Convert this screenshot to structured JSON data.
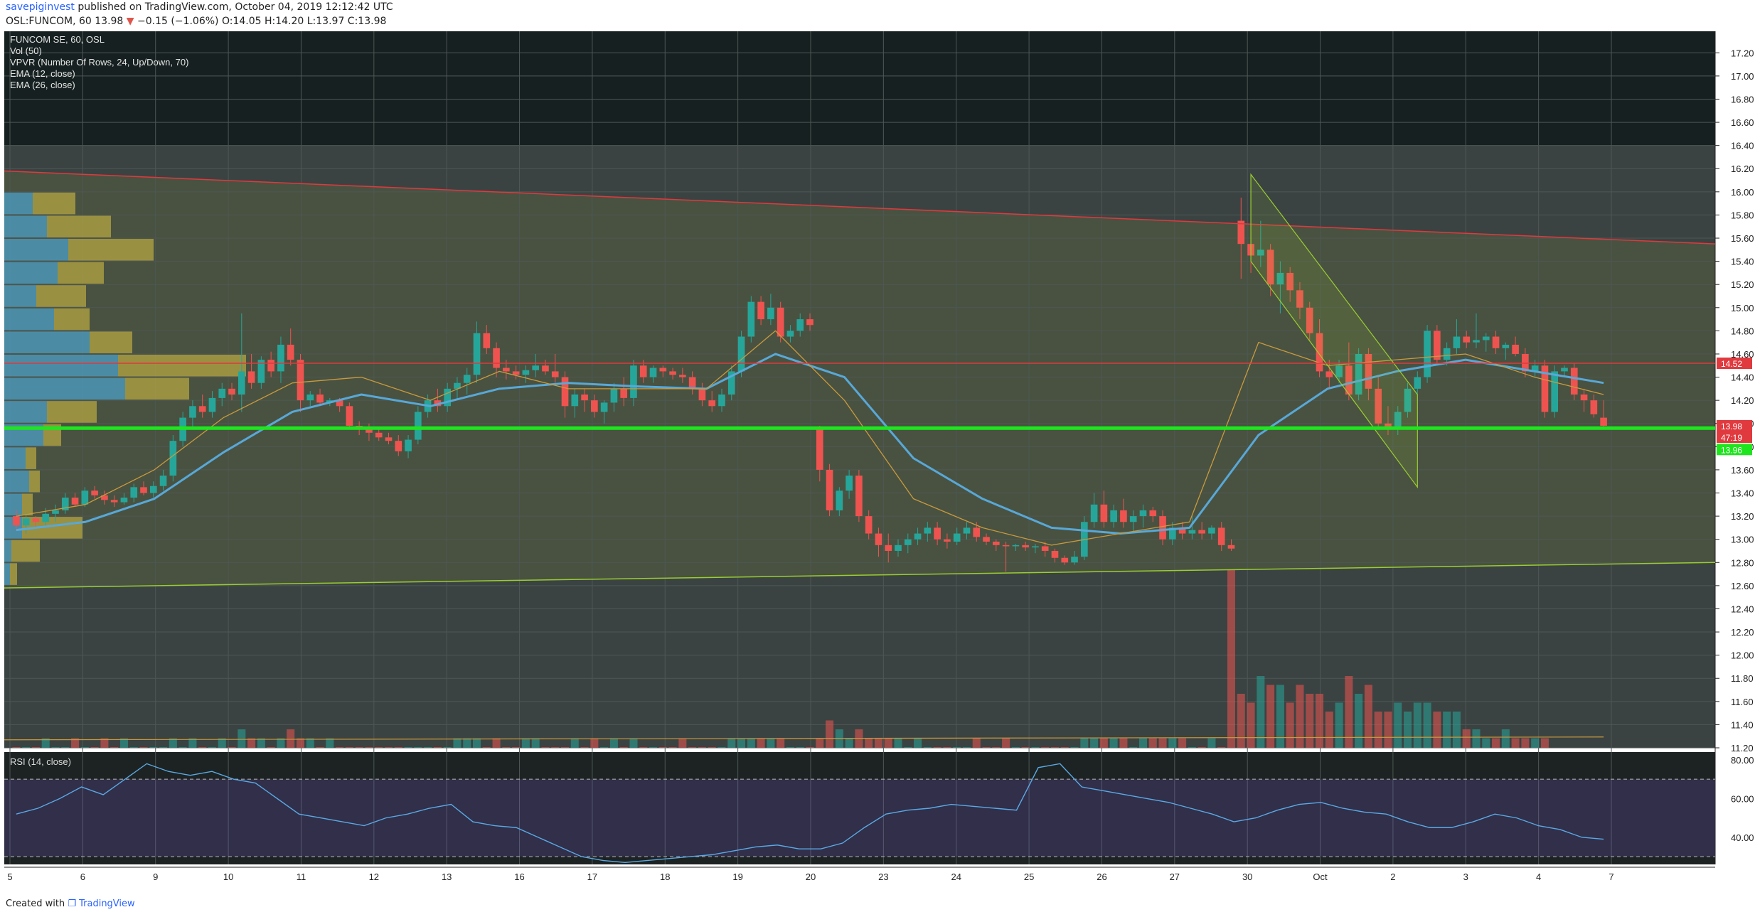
{
  "header": {
    "publisher": "savepiginvest",
    "published_text": "published on TradingView.com, October 04, 2019 12:12:42 UTC",
    "symbol": "OSL:FUNCOM, 60",
    "last": "13.98",
    "change": "−0.15 (−1.06%)",
    "ohlc": "O:14.05 H:14.20 L:13.97 C:13.98"
  },
  "legend": [
    "FUNCOM SE, 60, OSL",
    "Vol (50)",
    "VPVR (Number Of Rows, 24, Up/Down, 70)",
    "EMA (12, close)",
    "EMA (26, close)"
  ],
  "rsi_label": "RSI (14, close)",
  "footer": {
    "created_with": "Created with",
    "brand": "TradingView"
  },
  "price_badges": [
    {
      "text": "14.52",
      "color": "#e0393e"
    },
    {
      "text": "13.98",
      "color": "#e0393e"
    },
    {
      "text": "47:19",
      "color": "#e0393e"
    },
    {
      "text": "13.96",
      "color": "#1ee61e"
    }
  ],
  "colors": {
    "up": "#26a69a",
    "down": "#ef5350",
    "ema12": "#c99a3d",
    "ema26": "#58a8d8",
    "support": "#1ee61e",
    "resistance": "#e0393e",
    "channel": "#9acd32",
    "vpvr_up": "#4e9fc6",
    "vpvr_down": "#b5a642",
    "rsi_line": "#5aa9e6"
  },
  "chart_data": {
    "type": "candlestick",
    "title": "FUNCOM SE, 60, OSL",
    "timeframe": "60",
    "x_tick_labels": [
      "5",
      "6",
      "9",
      "10",
      "11",
      "12",
      "13",
      "16",
      "17",
      "18",
      "19",
      "20",
      "23",
      "24",
      "25",
      "26",
      "27",
      "30",
      "Oct",
      "2",
      "3",
      "4",
      "7"
    ],
    "price_ticks": [
      11.2,
      11.4,
      11.6,
      11.8,
      12.0,
      12.2,
      12.4,
      12.6,
      12.8,
      13.0,
      13.2,
      13.4,
      13.6,
      13.8,
      14.0,
      14.2,
      14.4,
      14.6,
      14.8,
      15.0,
      15.2,
      15.4,
      15.6,
      15.8,
      16.0,
      16.2,
      16.4,
      16.6,
      16.8,
      17.0,
      17.2
    ],
    "ylim": [
      11.2,
      17.3
    ],
    "candles_ohlc": [
      [
        13.2,
        13.25,
        13.08,
        13.12
      ],
      [
        13.12,
        13.22,
        13.05,
        13.18
      ],
      [
        13.18,
        13.2,
        13.1,
        13.15
      ],
      [
        13.15,
        13.27,
        13.12,
        13.22
      ],
      [
        13.22,
        13.3,
        13.15,
        13.25
      ],
      [
        13.25,
        13.4,
        13.22,
        13.36
      ],
      [
        13.36,
        13.4,
        13.28,
        13.3
      ],
      [
        13.3,
        13.45,
        13.28,
        13.42
      ],
      [
        13.42,
        13.46,
        13.35,
        13.38
      ],
      [
        13.38,
        13.42,
        13.3,
        13.34
      ],
      [
        13.34,
        13.38,
        13.28,
        13.32
      ],
      [
        13.32,
        13.4,
        13.3,
        13.36
      ],
      [
        13.36,
        13.48,
        13.32,
        13.45
      ],
      [
        13.45,
        13.5,
        13.38,
        13.4
      ],
      [
        13.4,
        13.5,
        13.36,
        13.46
      ],
      [
        13.46,
        13.6,
        13.42,
        13.55
      ],
      [
        13.55,
        13.9,
        13.5,
        13.85
      ],
      [
        13.85,
        14.1,
        13.8,
        14.05
      ],
      [
        14.05,
        14.2,
        13.95,
        14.15
      ],
      [
        14.15,
        14.25,
        14.05,
        14.1
      ],
      [
        14.1,
        14.28,
        14.05,
        14.22
      ],
      [
        14.22,
        14.35,
        14.15,
        14.3
      ],
      [
        14.3,
        14.35,
        14.2,
        14.25
      ],
      [
        14.25,
        14.95,
        14.1,
        14.45
      ],
      [
        14.45,
        14.6,
        14.3,
        14.35
      ],
      [
        14.35,
        14.58,
        14.3,
        14.55
      ],
      [
        14.55,
        14.62,
        14.4,
        14.45
      ],
      [
        14.45,
        14.75,
        14.35,
        14.68
      ],
      [
        14.68,
        14.82,
        14.5,
        14.55
      ],
      [
        14.55,
        14.6,
        14.1,
        14.2
      ],
      [
        14.2,
        14.28,
        14.15,
        14.25
      ],
      [
        14.25,
        14.3,
        14.15,
        14.18
      ],
      [
        14.18,
        14.22,
        14.15,
        14.2
      ],
      [
        14.2,
        14.22,
        14.1,
        14.15
      ],
      [
        14.15,
        14.18,
        13.95,
        13.98
      ],
      [
        13.98,
        14.02,
        13.9,
        13.95
      ],
      [
        13.95,
        14.0,
        13.85,
        13.92
      ],
      [
        13.92,
        13.95,
        13.85,
        13.88
      ],
      [
        13.88,
        13.92,
        13.82,
        13.85
      ],
      [
        13.85,
        13.9,
        13.72,
        13.76
      ],
      [
        13.76,
        13.9,
        13.7,
        13.86
      ],
      [
        13.86,
        14.15,
        13.82,
        14.1
      ],
      [
        14.1,
        14.25,
        14.05,
        14.2
      ],
      [
        14.2,
        14.3,
        14.1,
        14.15
      ],
      [
        14.15,
        14.35,
        14.1,
        14.3
      ],
      [
        14.3,
        14.4,
        14.2,
        14.35
      ],
      [
        14.35,
        14.48,
        14.25,
        14.42
      ],
      [
        14.42,
        14.88,
        14.35,
        14.78
      ],
      [
        14.78,
        14.85,
        14.6,
        14.65
      ],
      [
        14.65,
        14.7,
        14.4,
        14.48
      ],
      [
        14.48,
        14.55,
        14.38,
        14.45
      ],
      [
        14.45,
        14.5,
        14.38,
        14.42
      ],
      [
        14.42,
        14.5,
        14.35,
        14.46
      ],
      [
        14.46,
        14.6,
        14.4,
        14.5
      ],
      [
        14.5,
        14.55,
        14.42,
        14.45
      ],
      [
        14.45,
        14.6,
        14.35,
        14.4
      ],
      [
        14.4,
        14.45,
        14.05,
        14.15
      ],
      [
        14.15,
        14.3,
        14.05,
        14.25
      ],
      [
        14.25,
        14.3,
        14.1,
        14.2
      ],
      [
        14.2,
        14.25,
        14.05,
        14.1
      ],
      [
        14.1,
        14.2,
        14.0,
        14.18
      ],
      [
        14.18,
        14.35,
        14.1,
        14.3
      ],
      [
        14.3,
        14.4,
        14.15,
        14.22
      ],
      [
        14.22,
        14.55,
        14.15,
        14.5
      ],
      [
        14.5,
        14.55,
        14.35,
        14.4
      ],
      [
        14.4,
        14.5,
        14.35,
        14.48
      ],
      [
        14.48,
        14.5,
        14.4,
        14.45
      ],
      [
        14.45,
        14.48,
        14.38,
        14.42
      ],
      [
        14.42,
        14.48,
        14.35,
        14.4
      ],
      [
        14.4,
        14.45,
        14.25,
        14.3
      ],
      [
        14.3,
        14.35,
        14.15,
        14.2
      ],
      [
        14.2,
        14.28,
        14.1,
        14.15
      ],
      [
        14.15,
        14.3,
        14.1,
        14.25
      ],
      [
        14.25,
        14.5,
        14.2,
        14.45
      ],
      [
        14.45,
        14.8,
        14.4,
        14.75
      ],
      [
        14.75,
        15.1,
        14.7,
        15.05
      ],
      [
        15.05,
        15.1,
        14.85,
        14.9
      ],
      [
        14.9,
        15.12,
        14.85,
        15.0
      ],
      [
        15.0,
        15.05,
        14.7,
        14.75
      ],
      [
        14.75,
        14.85,
        14.7,
        14.8
      ],
      [
        14.8,
        14.95,
        14.75,
        14.9
      ],
      [
        14.9,
        14.95,
        14.8,
        14.85
      ],
      [
        13.95,
        13.98,
        13.5,
        13.6
      ],
      [
        13.6,
        13.65,
        13.2,
        13.25
      ],
      [
        13.25,
        13.45,
        13.2,
        13.42
      ],
      [
        13.42,
        13.6,
        13.35,
        13.55
      ],
      [
        13.55,
        13.6,
        13.15,
        13.2
      ],
      [
        13.2,
        13.25,
        13.0,
        13.05
      ],
      [
        13.05,
        13.1,
        12.85,
        12.95
      ],
      [
        12.95,
        13.05,
        12.8,
        12.9
      ],
      [
        12.9,
        13.0,
        12.85,
        12.95
      ],
      [
        12.95,
        13.05,
        12.88,
        13.0
      ],
      [
        13.0,
        13.1,
        12.95,
        13.05
      ],
      [
        13.05,
        13.15,
        12.98,
        13.1
      ],
      [
        13.1,
        13.15,
        12.95,
        13.0
      ],
      [
        13.0,
        13.05,
        12.92,
        12.98
      ],
      [
        12.98,
        13.1,
        12.95,
        13.05
      ],
      [
        13.05,
        13.15,
        13.0,
        13.1
      ],
      [
        13.1,
        13.15,
        12.98,
        13.02
      ],
      [
        13.02,
        13.05,
        12.95,
        12.98
      ],
      [
        12.98,
        13.0,
        12.9,
        12.95
      ],
      [
        12.95,
        12.98,
        12.72,
        12.94
      ],
      [
        12.94,
        12.96,
        12.9,
        12.95
      ],
      [
        12.95,
        12.98,
        12.9,
        12.93
      ],
      [
        12.93,
        12.96,
        12.88,
        12.94
      ],
      [
        12.94,
        12.98,
        12.85,
        12.9
      ],
      [
        12.9,
        12.92,
        12.8,
        12.84
      ],
      [
        12.84,
        12.86,
        12.78,
        12.8
      ],
      [
        12.8,
        12.9,
        12.78,
        12.85
      ],
      [
        12.85,
        13.2,
        12.82,
        13.15
      ],
      [
        13.15,
        13.4,
        13.1,
        13.3
      ],
      [
        13.3,
        13.42,
        13.1,
        13.15
      ],
      [
        13.15,
        13.3,
        13.1,
        13.25
      ],
      [
        13.25,
        13.35,
        13.1,
        13.15
      ],
      [
        13.15,
        13.25,
        13.05,
        13.2
      ],
      [
        13.2,
        13.3,
        13.1,
        13.25
      ],
      [
        13.25,
        13.28,
        13.15,
        13.2
      ],
      [
        13.2,
        13.25,
        12.95,
        13.0
      ],
      [
        13.0,
        13.15,
        12.95,
        13.1
      ],
      [
        13.1,
        13.15,
        13.0,
        13.05
      ],
      [
        13.05,
        13.2,
        13.0,
        13.08
      ],
      [
        13.08,
        13.15,
        13.0,
        13.05
      ],
      [
        13.05,
        13.12,
        13.0,
        13.1
      ],
      [
        13.1,
        13.15,
        12.9,
        12.95
      ],
      [
        12.95,
        13.0,
        12.9,
        12.92
      ],
      [
        15.75,
        15.95,
        15.25,
        15.55
      ],
      [
        15.55,
        15.65,
        15.3,
        15.45
      ],
      [
        15.45,
        15.75,
        15.35,
        15.5
      ],
      [
        15.5,
        15.55,
        15.1,
        15.2
      ],
      [
        15.2,
        15.4,
        14.95,
        15.3
      ],
      [
        15.3,
        15.35,
        15.05,
        15.15
      ],
      [
        15.15,
        15.22,
        14.9,
        15.0
      ],
      [
        15.0,
        15.05,
        14.72,
        14.78
      ],
      [
        14.78,
        14.9,
        14.4,
        14.45
      ],
      [
        14.45,
        14.55,
        14.3,
        14.4
      ],
      [
        14.4,
        14.55,
        14.35,
        14.5
      ],
      [
        14.5,
        14.7,
        14.2,
        14.25
      ],
      [
        14.25,
        14.65,
        14.2,
        14.6
      ],
      [
        14.6,
        14.65,
        14.2,
        14.3
      ],
      [
        14.3,
        14.4,
        13.95,
        14.0
      ],
      [
        14.0,
        14.15,
        13.9,
        13.95
      ],
      [
        13.95,
        14.15,
        13.9,
        14.1
      ],
      [
        14.1,
        14.35,
        14.05,
        14.3
      ],
      [
        14.3,
        14.45,
        14.25,
        14.4
      ],
      [
        14.4,
        14.85,
        14.35,
        14.8
      ],
      [
        14.8,
        14.85,
        14.5,
        14.55
      ],
      [
        14.55,
        14.7,
        14.5,
        14.65
      ],
      [
        14.65,
        14.9,
        14.6,
        14.75
      ],
      [
        14.75,
        14.8,
        14.65,
        14.7
      ],
      [
        14.7,
        14.95,
        14.65,
        14.72
      ],
      [
        14.72,
        14.78,
        14.62,
        14.75
      ],
      [
        14.75,
        14.8,
        14.6,
        14.65
      ],
      [
        14.65,
        14.7,
        14.55,
        14.68
      ],
      [
        14.68,
        14.75,
        14.58,
        14.6
      ],
      [
        14.6,
        14.65,
        14.4,
        14.45
      ],
      [
        14.45,
        14.55,
        14.4,
        14.5
      ],
      [
        14.5,
        14.55,
        14.05,
        14.1
      ],
      [
        14.1,
        14.5,
        14.05,
        14.45
      ],
      [
        14.45,
        14.5,
        14.4,
        14.48
      ],
      [
        14.48,
        14.52,
        14.2,
        14.25
      ],
      [
        14.25,
        14.3,
        14.1,
        14.2
      ],
      [
        14.2,
        14.25,
        14.05,
        14.08
      ],
      [
        14.05,
        14.2,
        13.97,
        13.98
      ]
    ],
    "volume_ticks": [
      0,
      0,
      0,
      1,
      0,
      0,
      1,
      0,
      0,
      1,
      0,
      1,
      0,
      0,
      0,
      0,
      1,
      0,
      1,
      0,
      0,
      1,
      0,
      2,
      1,
      1,
      0,
      1,
      2,
      1,
      1,
      0,
      1,
      0,
      0,
      0,
      0,
      0,
      0,
      0,
      0,
      0,
      0,
      0,
      0,
      1,
      1,
      1,
      0,
      1,
      0,
      0,
      1,
      1,
      0,
      0,
      0,
      1,
      0,
      1,
      0,
      1,
      0,
      1,
      0,
      0,
      0,
      0,
      1,
      0,
      0,
      0,
      0,
      1,
      1,
      1,
      1,
      1,
      1,
      0,
      0,
      0,
      1,
      3,
      2,
      1,
      2,
      1,
      1,
      1,
      1,
      0,
      1,
      0,
      0,
      0,
      0,
      0,
      1,
      0,
      0,
      1,
      0,
      0,
      0,
      0,
      0,
      0,
      0,
      1,
      1,
      1,
      1,
      1,
      0,
      1,
      1,
      1,
      1,
      1,
      0,
      0,
      1,
      0,
      20,
      6,
      5,
      8,
      7,
      7,
      5,
      7,
      6,
      6,
      4,
      5,
      8,
      6,
      7,
      4,
      4,
      5,
      4,
      5,
      5,
      4,
      4,
      4,
      2,
      2,
      1,
      1,
      2,
      1,
      1,
      1,
      1
    ],
    "volume_ma": 0.9,
    "ema12": [
      13.2,
      13.3,
      13.6,
      14.05,
      14.35,
      14.4,
      14.2,
      14.45,
      14.3,
      14.3,
      14.3,
      14.8,
      14.2,
      13.35,
      13.1,
      12.95,
      13.05,
      13.15,
      14.7,
      14.5,
      14.55,
      14.6,
      14.4,
      14.25
    ],
    "ema26": [
      13.08,
      13.15,
      13.35,
      13.75,
      14.1,
      14.25,
      14.15,
      14.3,
      14.35,
      14.32,
      14.3,
      14.6,
      14.4,
      13.7,
      13.35,
      13.1,
      13.05,
      13.1,
      13.9,
      14.3,
      14.45,
      14.55,
      14.45,
      14.35
    ],
    "rsi": [
      52,
      55,
      60,
      66,
      62,
      70,
      78,
      74,
      72,
      74,
      70,
      68,
      60,
      52,
      50,
      48,
      46,
      50,
      52,
      55,
      57,
      48,
      46,
      45,
      40,
      35,
      30,
      28,
      27,
      28,
      29,
      30,
      31,
      33,
      35,
      36,
      34,
      34,
      37,
      45,
      52,
      54,
      55,
      57,
      56,
      55,
      54,
      76,
      78,
      66,
      64,
      62,
      60,
      58,
      55,
      52,
      48,
      50,
      54,
      57,
      58,
      55,
      53,
      52,
      48,
      45,
      45,
      48,
      52,
      50,
      46,
      44,
      40,
      39
    ],
    "rsi_ticks": [
      40,
      60,
      80
    ],
    "rsi_levels": [
      30,
      70
    ],
    "rsi_ylim": [
      26,
      84
    ],
    "horizontal_lines": [
      14.52,
      13.96
    ],
    "trend_lines": [
      {
        "from": [
          0,
          16.18
        ],
        "to": [
          1,
          15.55
        ]
      },
      {
        "from": [
          0,
          12.58
        ],
        "to": [
          1,
          12.8
        ]
      }
    ],
    "channel": {
      "upper": [
        [
          15.15,
          16.15
        ],
        [
          15.9,
          14.25
        ]
      ],
      "lower": [
        [
          15.15,
          15.4
        ],
        [
          15.9,
          13.45
        ]
      ]
    },
    "vpvr_rows": [
      {
        "price": 15.9,
        "up": 40,
        "down": 60
      },
      {
        "price": 15.7,
        "up": 60,
        "down": 90
      },
      {
        "price": 15.5,
        "up": 90,
        "down": 120
      },
      {
        "price": 15.3,
        "up": 75,
        "down": 65
      },
      {
        "price": 15.1,
        "up": 45,
        "down": 70
      },
      {
        "price": 14.9,
        "up": 70,
        "down": 50
      },
      {
        "price": 14.7,
        "up": 120,
        "down": 60
      },
      {
        "price": 14.5,
        "up": 160,
        "down": 180
      },
      {
        "price": 14.3,
        "up": 170,
        "down": 90
      },
      {
        "price": 14.1,
        "up": 60,
        "down": 70
      },
      {
        "price": 13.9,
        "up": 55,
        "down": 25
      },
      {
        "price": 13.7,
        "up": 30,
        "down": 15
      },
      {
        "price": 13.5,
        "up": 35,
        "down": 15
      },
      {
        "price": 13.3,
        "up": 25,
        "down": 15
      },
      {
        "price": 13.1,
        "up": 25,
        "down": 85
      },
      {
        "price": 12.9,
        "up": 10,
        "down": 40
      },
      {
        "price": 12.7,
        "up": 8,
        "down": 10
      }
    ]
  }
}
